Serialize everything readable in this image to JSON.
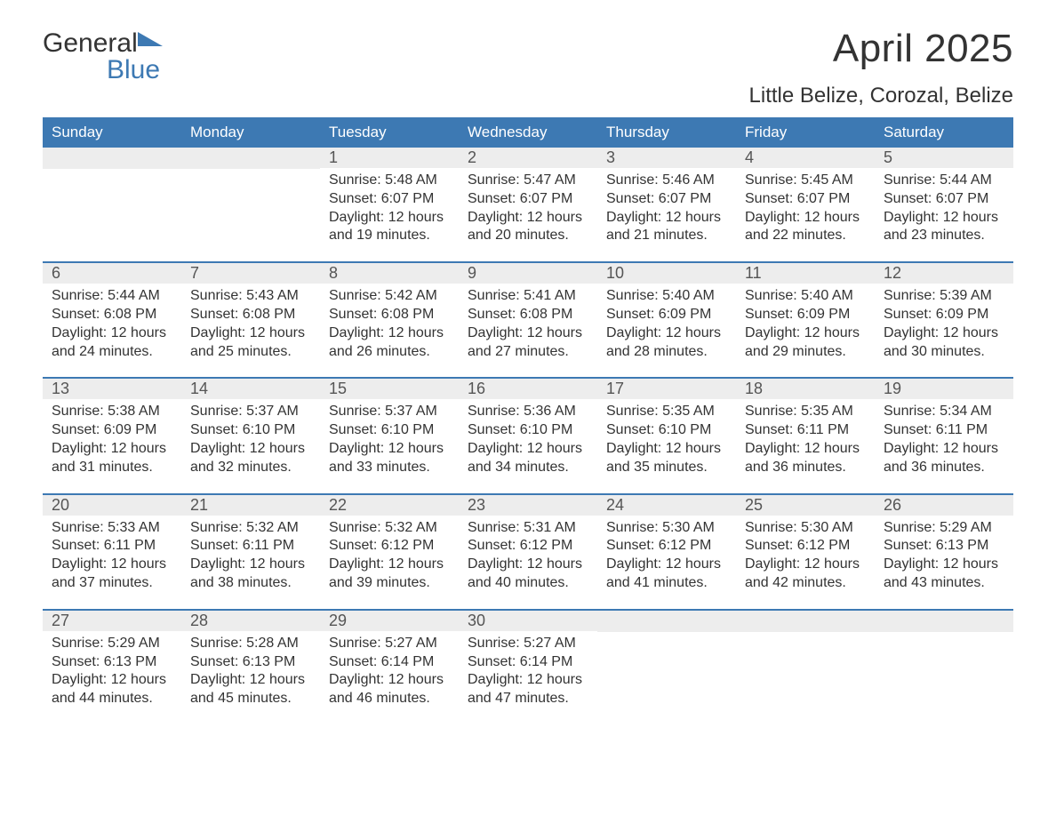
{
  "logo": {
    "word1": "General",
    "word2": "Blue"
  },
  "title": "April 2025",
  "location": "Little Belize, Corozal, Belize",
  "colors": {
    "header_bg": "#3d79b3",
    "header_text": "#ffffff",
    "date_bg": "#ededed",
    "week_border": "#3d79b3",
    "body_text": "#333333"
  },
  "daynames": [
    "Sunday",
    "Monday",
    "Tuesday",
    "Wednesday",
    "Thursday",
    "Friday",
    "Saturday"
  ],
  "weeks": [
    [
      {
        "date": "",
        "sunrise": "",
        "sunset": "",
        "daylight1": "",
        "daylight2": ""
      },
      {
        "date": "",
        "sunrise": "",
        "sunset": "",
        "daylight1": "",
        "daylight2": ""
      },
      {
        "date": "1",
        "sunrise": "Sunrise: 5:48 AM",
        "sunset": "Sunset: 6:07 PM",
        "daylight1": "Daylight: 12 hours",
        "daylight2": "and 19 minutes."
      },
      {
        "date": "2",
        "sunrise": "Sunrise: 5:47 AM",
        "sunset": "Sunset: 6:07 PM",
        "daylight1": "Daylight: 12 hours",
        "daylight2": "and 20 minutes."
      },
      {
        "date": "3",
        "sunrise": "Sunrise: 5:46 AM",
        "sunset": "Sunset: 6:07 PM",
        "daylight1": "Daylight: 12 hours",
        "daylight2": "and 21 minutes."
      },
      {
        "date": "4",
        "sunrise": "Sunrise: 5:45 AM",
        "sunset": "Sunset: 6:07 PM",
        "daylight1": "Daylight: 12 hours",
        "daylight2": "and 22 minutes."
      },
      {
        "date": "5",
        "sunrise": "Sunrise: 5:44 AM",
        "sunset": "Sunset: 6:07 PM",
        "daylight1": "Daylight: 12 hours",
        "daylight2": "and 23 minutes."
      }
    ],
    [
      {
        "date": "6",
        "sunrise": "Sunrise: 5:44 AM",
        "sunset": "Sunset: 6:08 PM",
        "daylight1": "Daylight: 12 hours",
        "daylight2": "and 24 minutes."
      },
      {
        "date": "7",
        "sunrise": "Sunrise: 5:43 AM",
        "sunset": "Sunset: 6:08 PM",
        "daylight1": "Daylight: 12 hours",
        "daylight2": "and 25 minutes."
      },
      {
        "date": "8",
        "sunrise": "Sunrise: 5:42 AM",
        "sunset": "Sunset: 6:08 PM",
        "daylight1": "Daylight: 12 hours",
        "daylight2": "and 26 minutes."
      },
      {
        "date": "9",
        "sunrise": "Sunrise: 5:41 AM",
        "sunset": "Sunset: 6:08 PM",
        "daylight1": "Daylight: 12 hours",
        "daylight2": "and 27 minutes."
      },
      {
        "date": "10",
        "sunrise": "Sunrise: 5:40 AM",
        "sunset": "Sunset: 6:09 PM",
        "daylight1": "Daylight: 12 hours",
        "daylight2": "and 28 minutes."
      },
      {
        "date": "11",
        "sunrise": "Sunrise: 5:40 AM",
        "sunset": "Sunset: 6:09 PM",
        "daylight1": "Daylight: 12 hours",
        "daylight2": "and 29 minutes."
      },
      {
        "date": "12",
        "sunrise": "Sunrise: 5:39 AM",
        "sunset": "Sunset: 6:09 PM",
        "daylight1": "Daylight: 12 hours",
        "daylight2": "and 30 minutes."
      }
    ],
    [
      {
        "date": "13",
        "sunrise": "Sunrise: 5:38 AM",
        "sunset": "Sunset: 6:09 PM",
        "daylight1": "Daylight: 12 hours",
        "daylight2": "and 31 minutes."
      },
      {
        "date": "14",
        "sunrise": "Sunrise: 5:37 AM",
        "sunset": "Sunset: 6:10 PM",
        "daylight1": "Daylight: 12 hours",
        "daylight2": "and 32 minutes."
      },
      {
        "date": "15",
        "sunrise": "Sunrise: 5:37 AM",
        "sunset": "Sunset: 6:10 PM",
        "daylight1": "Daylight: 12 hours",
        "daylight2": "and 33 minutes."
      },
      {
        "date": "16",
        "sunrise": "Sunrise: 5:36 AM",
        "sunset": "Sunset: 6:10 PM",
        "daylight1": "Daylight: 12 hours",
        "daylight2": "and 34 minutes."
      },
      {
        "date": "17",
        "sunrise": "Sunrise: 5:35 AM",
        "sunset": "Sunset: 6:10 PM",
        "daylight1": "Daylight: 12 hours",
        "daylight2": "and 35 minutes."
      },
      {
        "date": "18",
        "sunrise": "Sunrise: 5:35 AM",
        "sunset": "Sunset: 6:11 PM",
        "daylight1": "Daylight: 12 hours",
        "daylight2": "and 36 minutes."
      },
      {
        "date": "19",
        "sunrise": "Sunrise: 5:34 AM",
        "sunset": "Sunset: 6:11 PM",
        "daylight1": "Daylight: 12 hours",
        "daylight2": "and 36 minutes."
      }
    ],
    [
      {
        "date": "20",
        "sunrise": "Sunrise: 5:33 AM",
        "sunset": "Sunset: 6:11 PM",
        "daylight1": "Daylight: 12 hours",
        "daylight2": "and 37 minutes."
      },
      {
        "date": "21",
        "sunrise": "Sunrise: 5:32 AM",
        "sunset": "Sunset: 6:11 PM",
        "daylight1": "Daylight: 12 hours",
        "daylight2": "and 38 minutes."
      },
      {
        "date": "22",
        "sunrise": "Sunrise: 5:32 AM",
        "sunset": "Sunset: 6:12 PM",
        "daylight1": "Daylight: 12 hours",
        "daylight2": "and 39 minutes."
      },
      {
        "date": "23",
        "sunrise": "Sunrise: 5:31 AM",
        "sunset": "Sunset: 6:12 PM",
        "daylight1": "Daylight: 12 hours",
        "daylight2": "and 40 minutes."
      },
      {
        "date": "24",
        "sunrise": "Sunrise: 5:30 AM",
        "sunset": "Sunset: 6:12 PM",
        "daylight1": "Daylight: 12 hours",
        "daylight2": "and 41 minutes."
      },
      {
        "date": "25",
        "sunrise": "Sunrise: 5:30 AM",
        "sunset": "Sunset: 6:12 PM",
        "daylight1": "Daylight: 12 hours",
        "daylight2": "and 42 minutes."
      },
      {
        "date": "26",
        "sunrise": "Sunrise: 5:29 AM",
        "sunset": "Sunset: 6:13 PM",
        "daylight1": "Daylight: 12 hours",
        "daylight2": "and 43 minutes."
      }
    ],
    [
      {
        "date": "27",
        "sunrise": "Sunrise: 5:29 AM",
        "sunset": "Sunset: 6:13 PM",
        "daylight1": "Daylight: 12 hours",
        "daylight2": "and 44 minutes."
      },
      {
        "date": "28",
        "sunrise": "Sunrise: 5:28 AM",
        "sunset": "Sunset: 6:13 PM",
        "daylight1": "Daylight: 12 hours",
        "daylight2": "and 45 minutes."
      },
      {
        "date": "29",
        "sunrise": "Sunrise: 5:27 AM",
        "sunset": "Sunset: 6:14 PM",
        "daylight1": "Daylight: 12 hours",
        "daylight2": "and 46 minutes."
      },
      {
        "date": "30",
        "sunrise": "Sunrise: 5:27 AM",
        "sunset": "Sunset: 6:14 PM",
        "daylight1": "Daylight: 12 hours",
        "daylight2": "and 47 minutes."
      },
      {
        "date": "",
        "sunrise": "",
        "sunset": "",
        "daylight1": "",
        "daylight2": ""
      },
      {
        "date": "",
        "sunrise": "",
        "sunset": "",
        "daylight1": "",
        "daylight2": ""
      },
      {
        "date": "",
        "sunrise": "",
        "sunset": "",
        "daylight1": "",
        "daylight2": ""
      }
    ]
  ]
}
